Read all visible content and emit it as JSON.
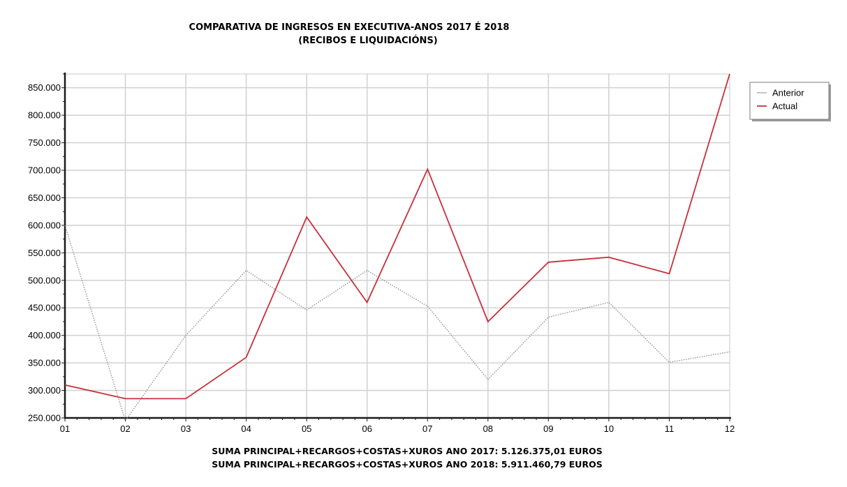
{
  "chart_data": {
    "type": "line",
    "title": "COMPARATIVA DE INGRESOS EN EXECUTIVA-ANOS 2017 É 2018",
    "subtitle": "(RECIBOS E LIQUIDACIÓNS)",
    "categories": [
      "01",
      "02",
      "03",
      "04",
      "05",
      "06",
      "07",
      "08",
      "09",
      "10",
      "11",
      "12"
    ],
    "series": [
      {
        "name": "Anterior",
        "color": "#8c8c8c",
        "style": "dotted",
        "values": [
          600000,
          245000,
          400000,
          518000,
          446000,
          518000,
          453000,
          320000,
          433000,
          460000,
          351000,
          370000
        ]
      },
      {
        "name": "Actual",
        "color": "#c8303a",
        "style": "solid",
        "values": [
          310000,
          285000,
          285000,
          360000,
          615000,
          460000,
          702000,
          425000,
          533000,
          542000,
          512000,
          875000
        ]
      }
    ],
    "y_ticks": [
      "250.000",
      "300.000",
      "350.000",
      "400.000",
      "450.000",
      "500.000",
      "550.000",
      "600.000",
      "650.000",
      "700.000",
      "750.000",
      "800.000",
      "850.000"
    ],
    "ylim": [
      250000,
      875000
    ],
    "grid": true,
    "legend_position": "top-right",
    "footer": [
      "SUMA PRINCIPAL+RECARGOS+COSTAS+XUROS ANO 2017: 5.126.375,01 EUROS",
      "SUMA PRINCIPAL+RECARGOS+COSTAS+XUROS ANO 2018: 5.911.460,79 EUROS"
    ]
  }
}
